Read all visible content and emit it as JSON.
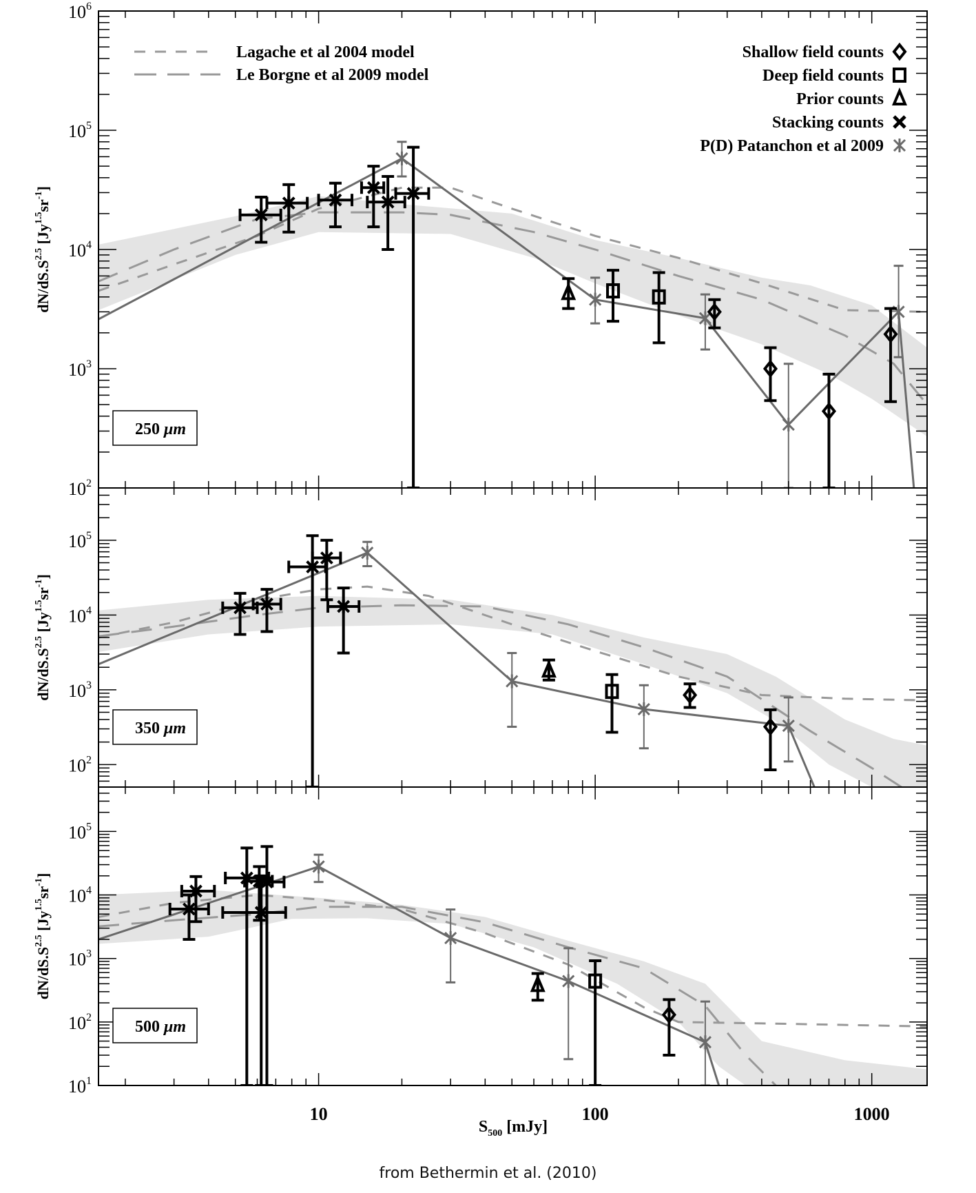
{
  "caption": "from Bethermin et al. (2010)",
  "chart_data": {
    "type": "scatter",
    "title": "",
    "xlabel": "S500 [mJy]",
    "xlabel_main": "S",
    "xlabel_sub": "500",
    "xlabel_rest": " [mJy]",
    "ylabel": "dN/dS.S^2.5 [Jy^1.5 sr^-1]",
    "xscale": "log",
    "yscale": "log",
    "xlim": [
      1.6,
      1585
    ],
    "xticks": [
      10,
      100,
      1000
    ],
    "xtick_labels": [
      "10",
      "100",
      "1000"
    ],
    "colors": {
      "data": "#000000",
      "pd": "#6a6a6a",
      "model": "#999999",
      "band": "#e4e4e4"
    },
    "legend": {
      "left": [
        {
          "label": "Lagache et al 2004 model",
          "style": "short-dash"
        },
        {
          "label": "Le Borgne et al 2009 model",
          "style": "long-dash"
        }
      ],
      "right": [
        {
          "label": "Shallow field counts",
          "marker": "diamond"
        },
        {
          "label": "Deep field counts",
          "marker": "square"
        },
        {
          "label": "Prior counts",
          "marker": "triangle"
        },
        {
          "label": "Stacking counts",
          "marker": "x"
        },
        {
          "label": "P(D) Patanchon et al 2009",
          "marker": "asterisk"
        }
      ],
      "placement": "top"
    },
    "panels": [
      {
        "band_label": "250 μm",
        "band_num": "250",
        "band_unit": "μm",
        "ylim": [
          100,
          1000000
        ],
        "yticks": [
          2,
          3,
          4,
          5,
          6
        ],
        "stacking": [
          {
            "x": 6.2,
            "y": 19500,
            "xlo": 5.2,
            "xhi": 7.3,
            "ylo": 11500,
            "yhi": 27500
          },
          {
            "x": 7.8,
            "y": 24500,
            "xlo": 6.5,
            "xhi": 9.1,
            "ylo": 14000,
            "yhi": 35000
          },
          {
            "x": 11.5,
            "y": 26000,
            "xlo": 10.0,
            "xhi": 13.2,
            "ylo": 15500,
            "yhi": 36000
          },
          {
            "x": 15.8,
            "y": 33000,
            "xlo": 14.3,
            "xhi": 17.2,
            "ylo": 15500,
            "yhi": 50000
          },
          {
            "x": 17.8,
            "y": 25000,
            "xlo": 15.0,
            "xhi": 20.5,
            "ylo": 10000,
            "yhi": 41000
          },
          {
            "x": 22.0,
            "y": 29500,
            "xlo": 19.0,
            "xhi": 25.0,
            "ylo": 100,
            "yhi": 72000
          }
        ],
        "prior": [
          {
            "x": 80,
            "y": 4300,
            "ylo": 3200,
            "yhi": 5700
          }
        ],
        "deep": [
          {
            "x": 116,
            "y": 4500,
            "ylo": 2500,
            "yhi": 6700
          },
          {
            "x": 170,
            "y": 4000,
            "ylo": 1650,
            "yhi": 6400
          }
        ],
        "shallow": [
          {
            "x": 270,
            "y": 3000,
            "ylo": 2200,
            "yhi": 3800
          },
          {
            "x": 430,
            "y": 1000,
            "ylo": 540,
            "yhi": 1500
          },
          {
            "x": 700,
            "y": 440,
            "ylo": 100,
            "yhi": 900
          },
          {
            "x": 1170,
            "y": 1950,
            "ylo": 530,
            "yhi": 3200
          }
        ],
        "pd": [
          {
            "x": 20,
            "y": 58000,
            "ylo": 41000,
            "yhi": 80000
          },
          {
            "x": 100,
            "y": 3800,
            "ylo": 2400,
            "yhi": 5800
          },
          {
            "x": 250,
            "y": 2650,
            "ylo": 1450,
            "yhi": 4200
          },
          {
            "x": 500,
            "y": 340,
            "ylo": 100,
            "yhi": 1100
          },
          {
            "x": 1250,
            "y": 3000,
            "ylo": 1250,
            "yhi": 7300
          }
        ],
        "pd_line_end": {
          "x": 1420,
          "y": 100
        },
        "pd_line_start": {
          "x": 1.6,
          "y": 2600
        },
        "lagache": [
          [
            1.6,
            4500
          ],
          [
            3,
            7500
          ],
          [
            6,
            13000
          ],
          [
            10,
            22000
          ],
          [
            20,
            33000
          ],
          [
            30,
            33000
          ],
          [
            50,
            22000
          ],
          [
            100,
            13000
          ],
          [
            200,
            8500
          ],
          [
            400,
            5200
          ],
          [
            800,
            3100
          ],
          [
            1585,
            3000
          ]
        ],
        "leborgne": [
          [
            1.6,
            5400
          ],
          [
            3,
            10000
          ],
          [
            6,
            18000
          ],
          [
            10,
            20500
          ],
          [
            20,
            20500
          ],
          [
            30,
            19500
          ],
          [
            60,
            14000
          ],
          [
            100,
            10000
          ],
          [
            200,
            6000
          ],
          [
            400,
            3800
          ],
          [
            800,
            1900
          ],
          [
            1200,
            1100
          ],
          [
            1585,
            500
          ]
        ],
        "band_upper": [
          [
            1.6,
            11000
          ],
          [
            5,
            19000
          ],
          [
            10,
            28000
          ],
          [
            20,
            24000
          ],
          [
            50,
            20000
          ],
          [
            100,
            12000
          ],
          [
            200,
            8500
          ],
          [
            400,
            5800
          ],
          [
            600,
            5000
          ],
          [
            1000,
            3400
          ],
          [
            1585,
            1500
          ]
        ],
        "band_lower": [
          [
            1.6,
            3100
          ],
          [
            5,
            9000
          ],
          [
            10,
            14000
          ],
          [
            30,
            13500
          ],
          [
            60,
            8500
          ],
          [
            100,
            5200
          ],
          [
            200,
            2800
          ],
          [
            400,
            1600
          ],
          [
            700,
            900
          ],
          [
            1000,
            560
          ],
          [
            1585,
            270
          ]
        ]
      },
      {
        "band_label": "350 μm",
        "band_num": "350",
        "band_unit": "μm",
        "ylim": [
          50,
          500000
        ],
        "yticks": [
          2,
          3,
          4,
          5
        ],
        "stacking": [
          {
            "x": 5.2,
            "y": 12500,
            "xlo": 4.5,
            "xhi": 6.0,
            "ylo": 5500,
            "yhi": 19500
          },
          {
            "x": 6.5,
            "y": 14000,
            "xlo": 5.8,
            "xhi": 7.3,
            "ylo": 6000,
            "yhi": 22000
          },
          {
            "x": 9.5,
            "y": 44000,
            "xlo": 7.8,
            "xhi": 10.6,
            "ylo": 50,
            "yhi": 115000
          },
          {
            "x": 10.7,
            "y": 58000,
            "xlo": 9.5,
            "xhi": 12.0,
            "ylo": 16000,
            "yhi": 100000
          },
          {
            "x": 12.3,
            "y": 13000,
            "xlo": 10.8,
            "xhi": 14.0,
            "ylo": 3100,
            "yhi": 23000
          }
        ],
        "prior": [
          {
            "x": 68,
            "y": 1800,
            "ylo": 1350,
            "yhi": 2500
          }
        ],
        "deep": [
          {
            "x": 115,
            "y": 950,
            "ylo": 270,
            "yhi": 1600
          }
        ],
        "shallow": [
          {
            "x": 220,
            "y": 850,
            "ylo": 580,
            "yhi": 1200
          },
          {
            "x": 430,
            "y": 320,
            "ylo": 85,
            "yhi": 540
          }
        ],
        "pd": [
          {
            "x": 15,
            "y": 68000,
            "ylo": 45000,
            "yhi": 95000
          },
          {
            "x": 50,
            "y": 1300,
            "ylo": 320,
            "yhi": 3100
          },
          {
            "x": 150,
            "y": 550,
            "ylo": 165,
            "yhi": 1150
          },
          {
            "x": 500,
            "y": 330,
            "ylo": 110,
            "yhi": 790
          }
        ],
        "pd_line_end": {
          "x": 620,
          "y": 50
        },
        "pd_line_start": {
          "x": 1.6,
          "y": 2200
        },
        "lagache": [
          [
            1.6,
            5000
          ],
          [
            3,
            8000
          ],
          [
            6,
            16000
          ],
          [
            10,
            22000
          ],
          [
            15,
            24000
          ],
          [
            25,
            18000
          ],
          [
            50,
            7500
          ],
          [
            100,
            3300
          ],
          [
            200,
            1500
          ],
          [
            400,
            850
          ],
          [
            800,
            760
          ],
          [
            1585,
            720
          ]
        ],
        "leborgne": [
          [
            1.6,
            5200
          ],
          [
            3,
            7000
          ],
          [
            6,
            10000
          ],
          [
            10,
            12500
          ],
          [
            20,
            13500
          ],
          [
            40,
            13000
          ],
          [
            80,
            7500
          ],
          [
            150,
            3700
          ],
          [
            300,
            1500
          ],
          [
            600,
            280
          ],
          [
            1000,
            90
          ],
          [
            1585,
            30
          ]
        ],
        "band_upper": [
          [
            1.6,
            11500
          ],
          [
            4,
            16000
          ],
          [
            10,
            18000
          ],
          [
            30,
            16000
          ],
          [
            70,
            10000
          ],
          [
            150,
            5000
          ],
          [
            300,
            3000
          ],
          [
            450,
            1500
          ],
          [
            800,
            400
          ],
          [
            1200,
            220
          ],
          [
            1585,
            180
          ]
        ],
        "band_lower": [
          [
            1.6,
            3200
          ],
          [
            4,
            5500
          ],
          [
            10,
            7000
          ],
          [
            30,
            7500
          ],
          [
            70,
            5500
          ],
          [
            150,
            2200
          ],
          [
            300,
            900
          ],
          [
            450,
            380
          ],
          [
            700,
            100
          ],
          [
            1000,
            50
          ]
        ]
      },
      {
        "band_label": "500 μm",
        "band_num": "500",
        "band_unit": "μm",
        "ylim": [
          10,
          500000
        ],
        "yticks": [
          1,
          2,
          3,
          4,
          5
        ],
        "stacking": [
          {
            "x": 3.4,
            "y": 6000,
            "xlo": 2.9,
            "xhi": 4.0,
            "ylo": 2000,
            "yhi": 10000
          },
          {
            "x": 3.6,
            "y": 11500,
            "xlo": 3.2,
            "xhi": 4.2,
            "ylo": 3800,
            "yhi": 19500
          },
          {
            "x": 5.5,
            "y": 18500,
            "xlo": 4.6,
            "xhi": 6.6,
            "ylo": 10,
            "yhi": 55000
          },
          {
            "x": 6.1,
            "y": 16500,
            "xlo": 5.4,
            "xhi": 6.8,
            "ylo": 4000,
            "yhi": 28000
          },
          {
            "x": 6.2,
            "y": 5300,
            "xlo": 4.5,
            "xhi": 7.6,
            "ylo": 10,
            "yhi": 20000
          },
          {
            "x": 6.5,
            "y": 16000,
            "xlo": 6.0,
            "xhi": 7.5,
            "ylo": 10,
            "yhi": 58000
          }
        ],
        "prior": [
          {
            "x": 62,
            "y": 380,
            "ylo": 220,
            "yhi": 580
          }
        ],
        "deep": [
          {
            "x": 100,
            "y": 440,
            "ylo": 10,
            "yhi": 920
          }
        ],
        "shallow": [
          {
            "x": 185,
            "y": 130,
            "ylo": 30,
            "yhi": 225
          }
        ],
        "pd": [
          {
            "x": 10,
            "y": 28000,
            "ylo": 16000,
            "yhi": 43000
          },
          {
            "x": 30,
            "y": 2100,
            "ylo": 420,
            "yhi": 5900
          },
          {
            "x": 80,
            "y": 440,
            "ylo": 26,
            "yhi": 1450
          },
          {
            "x": 250,
            "y": 48,
            "ylo": 10,
            "yhi": 210
          }
        ],
        "pd_line_end": {
          "x": 280,
          "y": 10
        },
        "pd_line_start": {
          "x": 1.6,
          "y": 2000
        },
        "lagache": [
          [
            1.6,
            4500
          ],
          [
            3,
            7500
          ],
          [
            6,
            10000
          ],
          [
            10,
            8500
          ],
          [
            20,
            6000
          ],
          [
            40,
            2500
          ],
          [
            80,
            800
          ],
          [
            150,
            170
          ],
          [
            200,
            100
          ],
          [
            400,
            95
          ],
          [
            800,
            90
          ],
          [
            1585,
            85
          ]
        ],
        "leborgne": [
          [
            1.6,
            3200
          ],
          [
            3,
            4000
          ],
          [
            6,
            5000
          ],
          [
            10,
            6500
          ],
          [
            20,
            6500
          ],
          [
            40,
            3700
          ],
          [
            80,
            1500
          ],
          [
            150,
            700
          ],
          [
            250,
            180
          ],
          [
            350,
            30
          ],
          [
            450,
            10
          ]
        ],
        "band_upper": [
          [
            1.6,
            10000
          ],
          [
            4,
            12000
          ],
          [
            10,
            9000
          ],
          [
            20,
            7000
          ],
          [
            40,
            4500
          ],
          [
            80,
            1900
          ],
          [
            150,
            900
          ],
          [
            250,
            400
          ],
          [
            400,
            50
          ],
          [
            800,
            25
          ],
          [
            1585,
            18
          ]
        ],
        "band_lower": [
          [
            1.6,
            1700
          ],
          [
            4,
            2200
          ],
          [
            8,
            4200
          ],
          [
            15,
            4300
          ],
          [
            30,
            3500
          ],
          [
            60,
            1500
          ],
          [
            120,
            400
          ],
          [
            200,
            100
          ],
          [
            280,
            20
          ],
          [
            350,
            10
          ]
        ]
      }
    ]
  }
}
